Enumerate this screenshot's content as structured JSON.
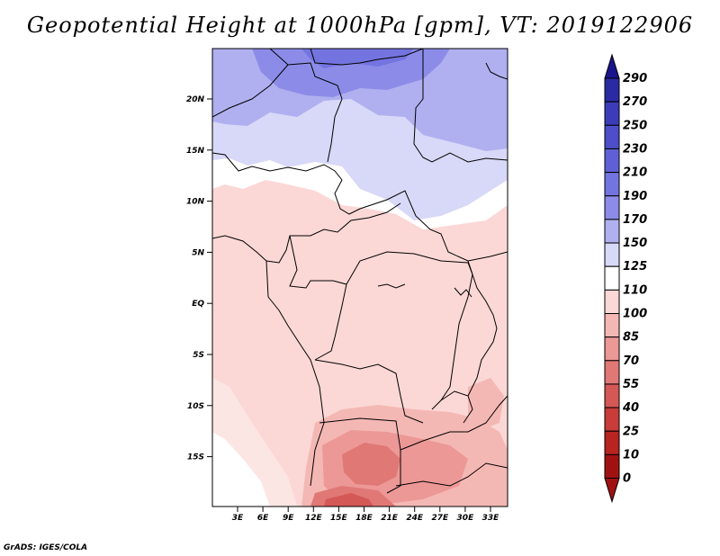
{
  "title": "Geopotential Height at 1000hPa [gpm], VT: 2019122906",
  "footer": "GrADS: IGES/COLA",
  "axes": {
    "lat_labels": [
      "20N",
      "15N",
      "10N",
      "5N",
      "EQ",
      "5S",
      "10S",
      "15S"
    ],
    "lon_labels": [
      "3E",
      "6E",
      "9E",
      "12E",
      "15E",
      "18E",
      "21E",
      "24E",
      "27E",
      "30E",
      "33E"
    ]
  },
  "colorbar": {
    "labels": [
      "290",
      "270",
      "250",
      "230",
      "210",
      "190",
      "170",
      "150",
      "125",
      "110",
      "100",
      "85",
      "70",
      "55",
      "40",
      "25",
      "10",
      "0"
    ],
    "colors": [
      "#1a148c",
      "#2b2aa3",
      "#3c3cb8",
      "#4e4ec8",
      "#6060d6",
      "#7474e0",
      "#8c8ce8",
      "#b0b0f0",
      "#d8d8f8",
      "#ffffff",
      "#fbd8d6",
      "#f4b8b4",
      "#ec9896",
      "#e07876",
      "#d45856",
      "#c83c3a",
      "#b82420",
      "#a01212"
    ]
  }
}
